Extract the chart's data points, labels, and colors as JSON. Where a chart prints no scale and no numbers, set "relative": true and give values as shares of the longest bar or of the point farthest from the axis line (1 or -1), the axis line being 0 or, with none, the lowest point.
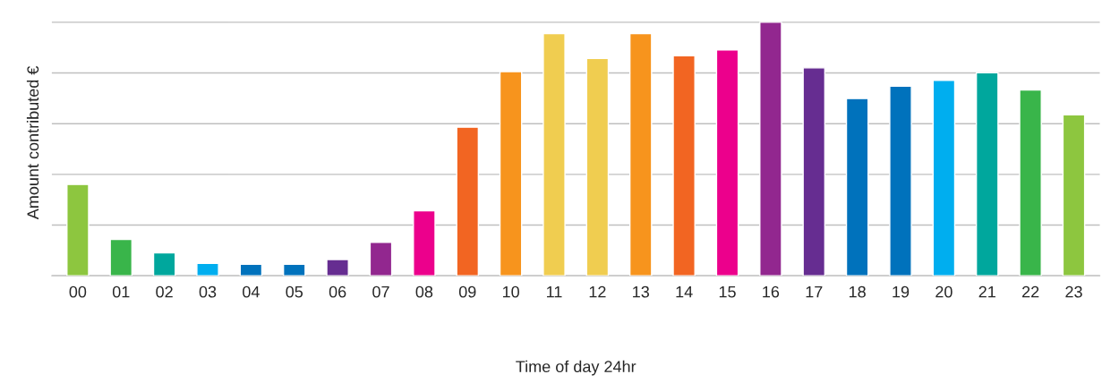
{
  "chart_data": {
    "type": "bar",
    "relative": true,
    "xlabel": "Time of day 24hr",
    "ylabel": "Amount contributed €",
    "grid": "y",
    "categories": [
      "00",
      "01",
      "02",
      "03",
      "04",
      "05",
      "06",
      "07",
      "08",
      "09",
      "10",
      "11",
      "12",
      "13",
      "14",
      "15",
      "16",
      "17",
      "18",
      "19",
      "20",
      "21",
      "22",
      "23"
    ],
    "values": [
      0.36,
      0.143,
      0.09,
      0.049,
      0.045,
      0.045,
      0.064,
      0.132,
      0.256,
      0.586,
      0.805,
      0.955,
      0.857,
      0.955,
      0.868,
      0.891,
      1,
      0.82,
      0.699,
      0.748,
      0.771,
      0.801,
      0.733,
      0.635
    ],
    "colors": [
      "#8dc63f",
      "#39b54a",
      "#00a79d",
      "#00aeef",
      "#0072bc",
      "#0072bc",
      "#662d91",
      "#92278f",
      "#ec008c",
      "#f26522",
      "#f7941d",
      "#f0cd50",
      "#f0cd50",
      "#f7941d",
      "#f26522",
      "#ec008c",
      "#92278f",
      "#662d91",
      "#0072bc",
      "#0072bc",
      "#00aeef",
      "#00a79d",
      "#39b54a",
      "#8dc63f"
    ]
  }
}
